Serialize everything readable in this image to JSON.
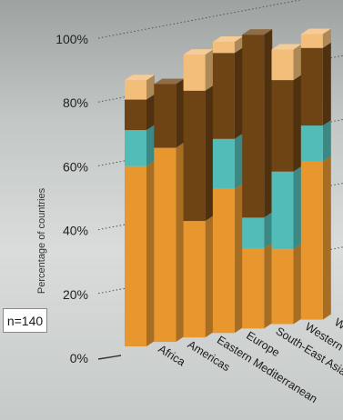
{
  "chart_data": {
    "type": "bar",
    "stacked": true,
    "three_d": true,
    "ylabel": "Percentage of countries",
    "ylim": [
      0,
      100
    ],
    "yticks": [
      "0%",
      "20%",
      "40%",
      "60%",
      "80%",
      "100%"
    ],
    "categories": [
      "Africa",
      "Americas",
      "Eastern Mediterranean",
      "Europe",
      "South-East Asia",
      "Western Pacific",
      "World"
    ],
    "series": [
      {
        "color": "#e8972f",
        "values": [
          65,
          70,
          42,
          52,
          29,
          27,
          57
        ]
      },
      {
        "color": "#52bdb8",
        "values": [
          13,
          0,
          0,
          18,
          11,
          28,
          13
        ]
      },
      {
        "color": "#6e4415",
        "values": [
          11,
          23,
          47,
          31,
          66,
          33,
          28
        ]
      },
      {
        "color": "#f2be7a",
        "values": [
          7,
          0,
          13,
          4,
          0,
          11,
          5
        ]
      }
    ],
    "annotation": "n=140",
    "grid": "dotted horizontal lines on back wall"
  }
}
